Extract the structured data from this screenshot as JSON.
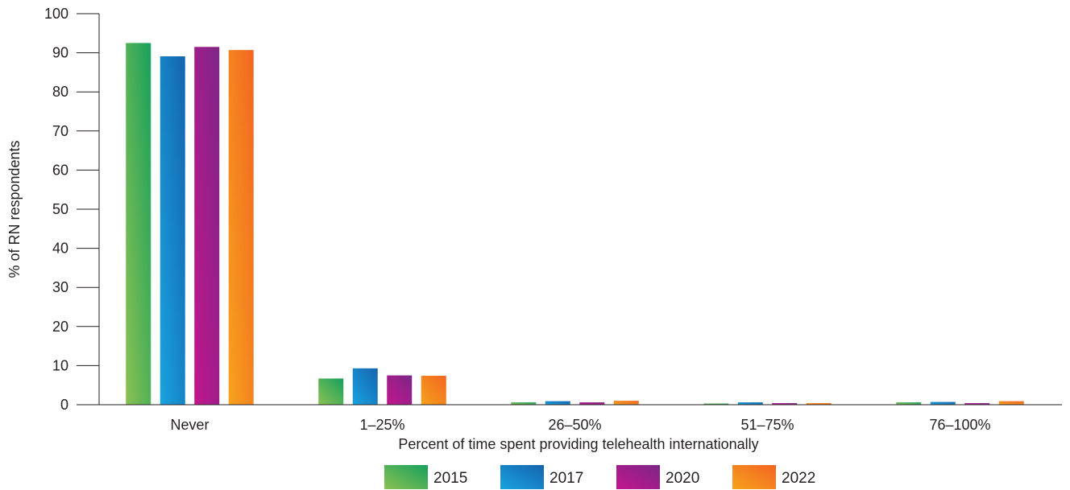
{
  "chart_data": {
    "type": "bar",
    "title": "",
    "xlabel": "Percent of time spent providing telehealth internationally",
    "ylabel": "% of RN respondents",
    "ylim": [
      0,
      100
    ],
    "yticks": [
      0,
      10,
      20,
      30,
      40,
      50,
      60,
      70,
      80,
      90,
      100
    ],
    "grid": false,
    "legend_position": "bottom",
    "categories": [
      "Never",
      "1–25%",
      "26–50%",
      "51–75%",
      "76–100%"
    ],
    "series": [
      {
        "name": "2015",
        "values": [
          92.5,
          6.7,
          0.6,
          0.3,
          0.6
        ],
        "color_light": "#8cc152",
        "color_dark": "#17a05d"
      },
      {
        "name": "2017",
        "values": [
          89.1,
          9.3,
          0.9,
          0.6,
          0.7
        ],
        "color_light": "#1aa3df",
        "color_dark": "#1464ae"
      },
      {
        "name": "2020",
        "values": [
          91.5,
          7.5,
          0.6,
          0.4,
          0.4
        ],
        "color_light": "#c2168c",
        "color_dark": "#7d2687"
      },
      {
        "name": "2022",
        "values": [
          90.7,
          7.4,
          1.0,
          0.4,
          0.9
        ],
        "color_light": "#f7a21d",
        "color_dark": "#f26522"
      }
    ]
  }
}
